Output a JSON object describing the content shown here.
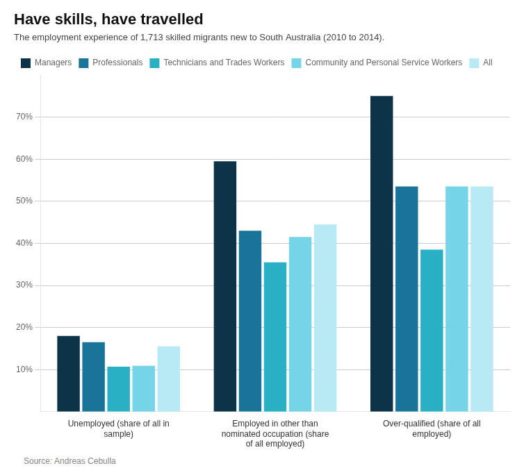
{
  "chart_data": {
    "type": "bar",
    "title": "Have skills, have travelled",
    "subtitle": "The employment experience of 1,713 skilled migrants new to South Australia (2010 to 2014).",
    "source": "Source: Andreas Cebulla",
    "categories": [
      "Unemployed (share of all in\nsample)",
      "Employed in other than\nnominated occupation (share\nof all employed)",
      "Over-qualified (share of all\nemployed)"
    ],
    "series": [
      {
        "name": "Managers",
        "color": "#0d3349",
        "values": [
          0.18,
          0.595,
          0.75
        ]
      },
      {
        "name": "Professionals",
        "color": "#1a7499",
        "values": [
          0.165,
          0.43,
          0.535
        ]
      },
      {
        "name": "Technicians and Trades Workers",
        "color": "#2ab0c5",
        "values": [
          0.107,
          0.355,
          0.385
        ]
      },
      {
        "name": "Community and Personal Service Workers",
        "color": "#76d4e8",
        "values": [
          0.109,
          0.415,
          0.535
        ]
      },
      {
        "name": "All",
        "color": "#b8eaf5",
        "values": [
          0.155,
          0.445,
          0.535
        ]
      }
    ],
    "ylim": [
      0,
      0.8
    ],
    "yticks": [
      {
        "value": 0.1,
        "label": "10%"
      },
      {
        "value": 0.2,
        "label": "20%"
      },
      {
        "value": 0.3,
        "label": "30%"
      },
      {
        "value": 0.4,
        "label": "40%"
      },
      {
        "value": 0.5,
        "label": "50%"
      },
      {
        "value": 0.6,
        "label": "60%"
      },
      {
        "value": 0.7,
        "label": "70%"
      }
    ],
    "grid": true,
    "legend": "top"
  }
}
